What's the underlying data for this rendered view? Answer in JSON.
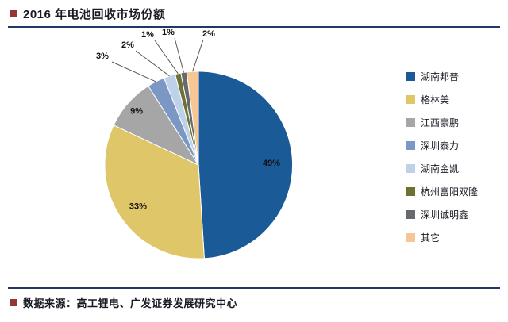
{
  "header": {
    "title": "2016 年电池回收市场份额"
  },
  "footer": {
    "source": "数据来源：高工锂电、广发证券发展研究中心"
  },
  "style": {
    "accent": "#1F3864",
    "bullet": "#943634",
    "text": "#1A1A24"
  },
  "chart_data": {
    "type": "pie",
    "title": "2016 年电池回收市场份额",
    "legend_position": "right",
    "total": 100,
    "segments": [
      {
        "label": "湖南邦普",
        "value": 49,
        "pct_label": "49%",
        "color": "#1A5A96"
      },
      {
        "label": "格林美",
        "value": 33,
        "pct_label": "33%",
        "color": "#DFC668"
      },
      {
        "label": "江西豪鹏",
        "value": 9,
        "pct_label": "9%",
        "color": "#A6A6A6"
      },
      {
        "label": "深圳泰力",
        "value": 3,
        "pct_label": "3%",
        "color": "#7B97C3"
      },
      {
        "label": "湖南金凯",
        "value": 2,
        "pct_label": "2%",
        "color": "#BDD1E8"
      },
      {
        "label": "杭州富阳双隆",
        "value": 1,
        "pct_label": "1%",
        "color": "#6E7034"
      },
      {
        "label": "深圳诚明鑫",
        "value": 1,
        "pct_label": "1%",
        "color": "#646A6D"
      },
      {
        "label": "其它",
        "value": 2,
        "pct_label": "2%",
        "color": "#F6C795"
      }
    ]
  }
}
